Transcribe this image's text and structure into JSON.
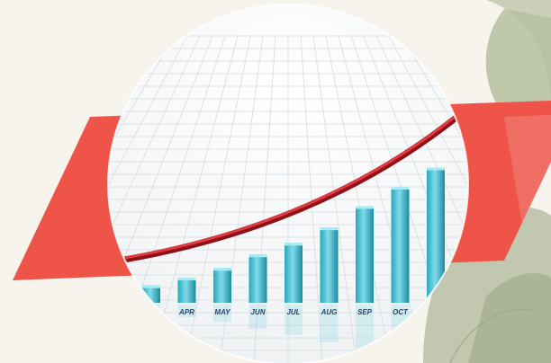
{
  "colors": {
    "background": "#f7f4ee",
    "red_band": "#ef5448",
    "leaf": "#b9c2a6",
    "bar_light": "#6fd3e4",
    "bar_dark": "#1f8ea5",
    "curve": "#c8202a"
  },
  "chart": {
    "months": [
      "APR",
      "MAY",
      "JUN",
      "JUL",
      "AUG",
      "SEP",
      "OCT"
    ],
    "bar_levels": [
      0.09,
      0.13,
      0.18,
      0.25,
      0.31,
      0.39,
      0.5,
      0.6,
      0.7
    ]
  }
}
